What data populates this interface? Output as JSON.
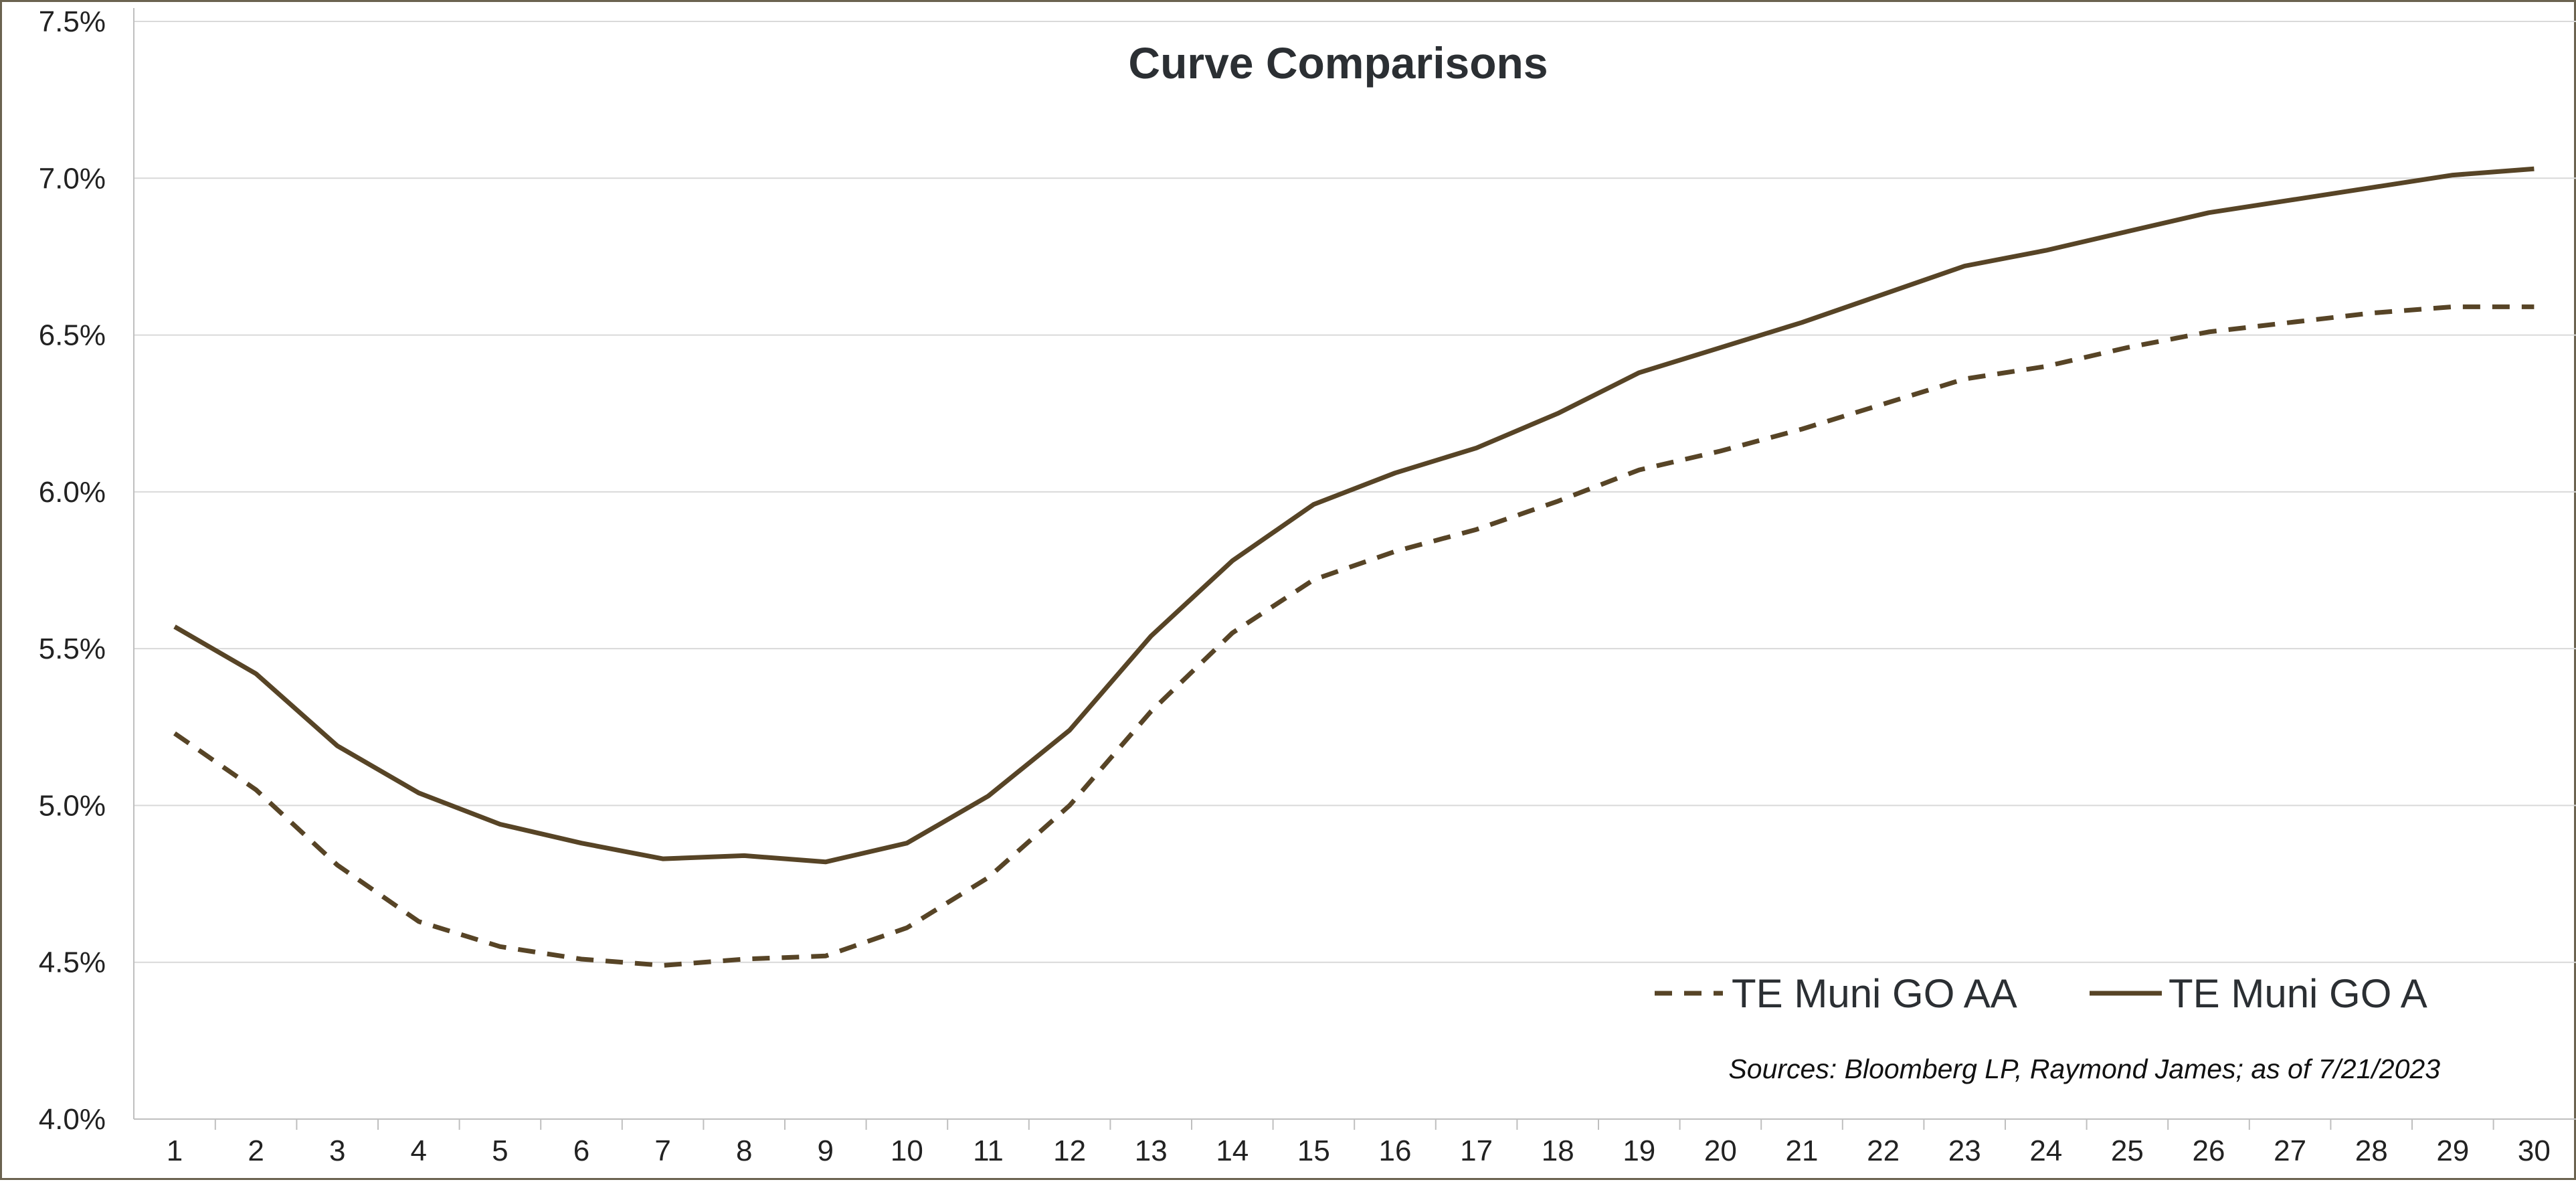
{
  "chart_data": {
    "type": "line",
    "title": "Curve Comparisons",
    "xlabel": "",
    "ylabel": "",
    "x": [
      1,
      2,
      3,
      4,
      5,
      6,
      7,
      8,
      9,
      10,
      11,
      12,
      13,
      14,
      15,
      16,
      17,
      18,
      19,
      20,
      21,
      22,
      23,
      24,
      25,
      26,
      27,
      28,
      29,
      30
    ],
    "ylim": [
      4.0,
      7.5
    ],
    "y_ticks": [
      "4.0%",
      "4.5%",
      "5.0%",
      "5.5%",
      "6.0%",
      "6.5%",
      "7.0%",
      "7.5%"
    ],
    "y_tick_values": [
      4.0,
      4.5,
      5.0,
      5.5,
      6.0,
      6.5,
      7.0,
      7.5
    ],
    "grid": true,
    "legend_position": "bottom-right",
    "series": [
      {
        "name": "TE Muni GO AA",
        "style": "dashed",
        "color": "#574426",
        "values": [
          5.23,
          5.05,
          4.81,
          4.63,
          4.55,
          4.51,
          4.49,
          4.51,
          4.52,
          4.61,
          4.77,
          5.0,
          5.3,
          5.55,
          5.72,
          5.81,
          5.88,
          5.97,
          6.07,
          6.13,
          6.2,
          6.28,
          6.36,
          6.4,
          6.46,
          6.51,
          6.54,
          6.57,
          6.59,
          6.59
        ]
      },
      {
        "name": "TE Muni GO A",
        "style": "solid",
        "color": "#574426",
        "values": [
          5.57,
          5.42,
          5.19,
          5.04,
          4.94,
          4.88,
          4.83,
          4.84,
          4.82,
          4.88,
          5.03,
          5.24,
          5.54,
          5.78,
          5.96,
          6.06,
          6.14,
          6.25,
          6.38,
          6.46,
          6.54,
          6.63,
          6.72,
          6.77,
          6.83,
          6.89,
          6.93,
          6.97,
          7.01,
          7.03
        ]
      }
    ],
    "annotation": "Sources: Bloomberg LP, Raymond James; as of  7/21/2023"
  }
}
